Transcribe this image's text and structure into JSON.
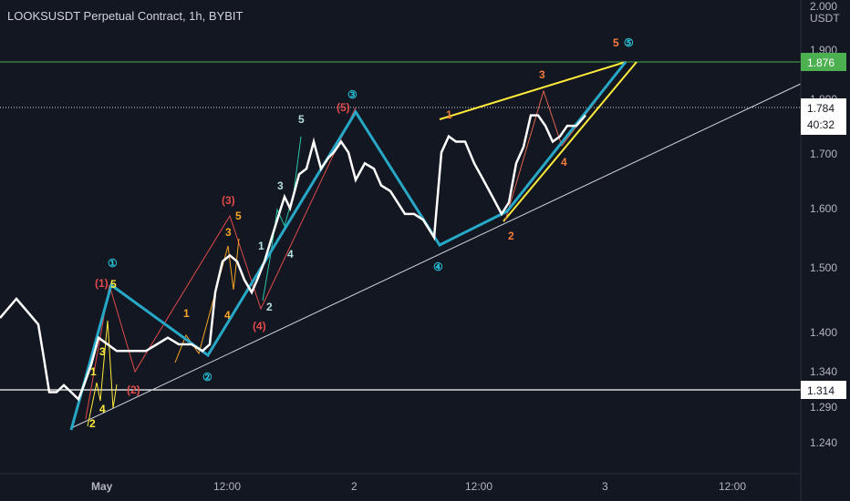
{
  "header": {
    "title": "LOOKSUSDT Perpetual Contract, 1h, BYBIT"
  },
  "price_axis": {
    "currency": "USDT",
    "ticks": [
      "2.000",
      "1.900",
      "1.800",
      "1.700",
      "1.600",
      "1.500",
      "1.400",
      "1.340",
      "1.290",
      "1.240"
    ],
    "markers": {
      "upper": {
        "value": "1.876",
        "color": "#4caf50"
      },
      "current": {
        "value": "1.784",
        "countdown": "40:32",
        "color": "#ffffff"
      },
      "lower": {
        "value": "1.314",
        "color": "#ffffff"
      }
    }
  },
  "time_axis": {
    "labels": [
      "May",
      "12:00",
      "2",
      "12:00",
      "3",
      "12:00"
    ]
  },
  "chart_data": {
    "type": "line",
    "title": "LOOKSUSDT Perpetual Contract, 1h, BYBIT",
    "y_scale": "log",
    "ylim": [
      1.21,
      2.0
    ],
    "series": [
      {
        "color": "#ffffff",
        "points": [
          [
            0,
            1.42
          ],
          [
            18,
            1.45
          ],
          [
            30,
            1.43
          ],
          [
            42,
            1.41
          ],
          [
            48,
            1.36
          ],
          [
            54,
            1.31
          ],
          [
            62,
            1.31
          ],
          [
            70,
            1.32
          ],
          [
            78,
            1.31
          ],
          [
            86,
            1.3
          ],
          [
            92,
            1.32
          ],
          [
            100,
            1.35
          ],
          [
            108,
            1.39
          ],
          [
            118,
            1.38
          ],
          [
            128,
            1.37
          ],
          [
            136,
            1.37
          ],
          [
            150,
            1.37
          ],
          [
            160,
            1.37
          ],
          [
            172,
            1.38
          ],
          [
            184,
            1.39
          ],
          [
            196,
            1.38
          ],
          [
            210,
            1.38
          ],
          [
            222,
            1.37
          ],
          [
            230,
            1.38
          ],
          [
            236,
            1.46
          ],
          [
            244,
            1.51
          ],
          [
            252,
            1.52
          ],
          [
            260,
            1.51
          ],
          [
            268,
            1.48
          ],
          [
            276,
            1.46
          ],
          [
            282,
            1.48
          ],
          [
            290,
            1.51
          ],
          [
            298,
            1.55
          ],
          [
            306,
            1.59
          ],
          [
            312,
            1.62
          ],
          [
            318,
            1.6
          ],
          [
            328,
            1.66
          ],
          [
            336,
            1.67
          ],
          [
            344,
            1.72
          ],
          [
            352,
            1.67
          ],
          [
            360,
            1.69
          ],
          [
            366,
            1.7
          ],
          [
            374,
            1.72
          ],
          [
            382,
            1.7
          ],
          [
            390,
            1.65
          ],
          [
            400,
            1.68
          ],
          [
            410,
            1.67
          ],
          [
            418,
            1.64
          ],
          [
            428,
            1.63
          ],
          [
            436,
            1.61
          ],
          [
            444,
            1.59
          ],
          [
            454,
            1.59
          ],
          [
            464,
            1.58
          ],
          [
            476,
            1.55
          ],
          [
            484,
            1.7
          ],
          [
            492,
            1.73
          ],
          [
            500,
            1.72
          ],
          [
            510,
            1.72
          ],
          [
            520,
            1.68
          ],
          [
            530,
            1.65
          ],
          [
            540,
            1.62
          ],
          [
            550,
            1.59
          ],
          [
            558,
            1.61
          ],
          [
            566,
            1.68
          ],
          [
            574,
            1.71
          ],
          [
            582,
            1.77
          ],
          [
            590,
            1.77
          ],
          [
            598,
            1.75
          ],
          [
            606,
            1.72
          ],
          [
            614,
            1.73
          ],
          [
            622,
            1.75
          ],
          [
            632,
            1.75
          ],
          [
            642,
            1.77
          ]
        ]
      }
    ],
    "wave_labels": {
      "cyan": [
        "①",
        "②",
        "③",
        "④",
        "⑤"
      ],
      "red": [
        "(1)",
        "(2)",
        "(3)",
        "(4)",
        "(5)"
      ],
      "orange_small": [
        "1",
        "2",
        "3",
        "4",
        "5",
        "1",
        "2",
        "3",
        "4",
        "5"
      ],
      "orange_end": [
        "1",
        "2",
        "3",
        "4",
        "5"
      ],
      "green": [
        "1",
        "2",
        "3",
        "4",
        "5"
      ]
    },
    "horizontal_lines": [
      1.876,
      1.784,
      1.314
    ],
    "grid": false,
    "background": "#131722"
  }
}
